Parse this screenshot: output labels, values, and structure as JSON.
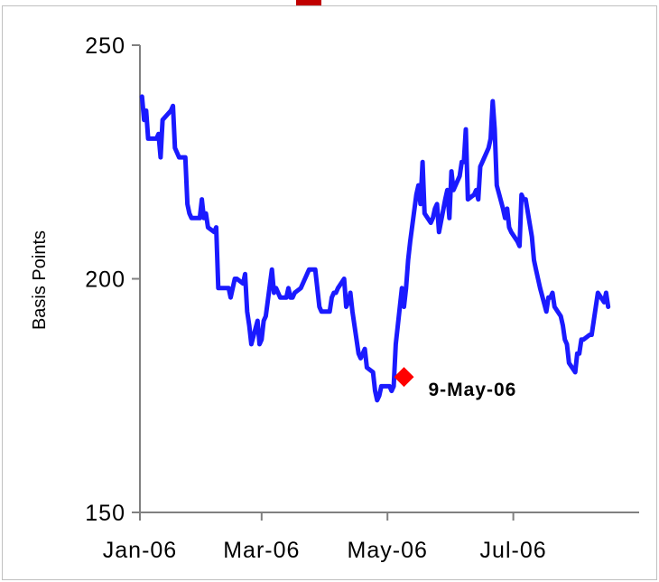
{
  "chart_data": {
    "type": "line",
    "title": "",
    "xlabel": "",
    "ylabel": "Basis Points",
    "ylim": [
      150,
      250
    ],
    "yticks": [
      150,
      200,
      250
    ],
    "xticks": [
      {
        "label": "Jan-06",
        "date": "2006-01-01"
      },
      {
        "label": "Mar-06",
        "date": "2006-03-01"
      },
      {
        "label": "May-06",
        "date": "2006-05-01"
      },
      {
        "label": "Jul-06",
        "date": "2006-07-01"
      }
    ],
    "xlim": [
      "2006-01-01",
      "2006-08-31"
    ],
    "grid": false,
    "series": [
      {
        "color": "#1a1aff",
        "points": [
          [
            "2006-01-02",
            239
          ],
          [
            "2006-01-03",
            234
          ],
          [
            "2006-01-04",
            236
          ],
          [
            "2006-01-05",
            230
          ],
          [
            "2006-01-09",
            230
          ],
          [
            "2006-01-10",
            231
          ],
          [
            "2006-01-11",
            226
          ],
          [
            "2006-01-12",
            234
          ],
          [
            "2006-01-16",
            236
          ],
          [
            "2006-01-17",
            237
          ],
          [
            "2006-01-18",
            228
          ],
          [
            "2006-01-19",
            227
          ],
          [
            "2006-01-20",
            226
          ],
          [
            "2006-01-23",
            226
          ],
          [
            "2006-01-24",
            216
          ],
          [
            "2006-01-25",
            214
          ],
          [
            "2006-01-26",
            213
          ],
          [
            "2006-01-30",
            213
          ],
          [
            "2006-01-31",
            217
          ],
          [
            "2006-02-01",
            213
          ],
          [
            "2006-02-02",
            214
          ],
          [
            "2006-02-03",
            211
          ],
          [
            "2006-02-06",
            210
          ],
          [
            "2006-02-07",
            211
          ],
          [
            "2006-02-08",
            198
          ],
          [
            "2006-02-10",
            198
          ],
          [
            "2006-02-13",
            198
          ],
          [
            "2006-02-14",
            196
          ],
          [
            "2006-02-15",
            198
          ],
          [
            "2006-02-16",
            200
          ],
          [
            "2006-02-17",
            200
          ],
          [
            "2006-02-20",
            199
          ],
          [
            "2006-02-21",
            201
          ],
          [
            "2006-02-22",
            193
          ],
          [
            "2006-02-23",
            190
          ],
          [
            "2006-02-24",
            186
          ],
          [
            "2006-02-27",
            191
          ],
          [
            "2006-02-28",
            186
          ],
          [
            "2006-03-01",
            187
          ],
          [
            "2006-03-02",
            191
          ],
          [
            "2006-03-03",
            192
          ],
          [
            "2006-03-06",
            202
          ],
          [
            "2006-03-07",
            197
          ],
          [
            "2006-03-08",
            198
          ],
          [
            "2006-03-09",
            197
          ],
          [
            "2006-03-10",
            196
          ],
          [
            "2006-03-13",
            196
          ],
          [
            "2006-03-14",
            198
          ],
          [
            "2006-03-15",
            196
          ],
          [
            "2006-03-16",
            196
          ],
          [
            "2006-03-17",
            197
          ],
          [
            "2006-03-20",
            198
          ],
          [
            "2006-03-22",
            200
          ],
          [
            "2006-03-24",
            202
          ],
          [
            "2006-03-27",
            202
          ],
          [
            "2006-03-28",
            198
          ],
          [
            "2006-03-29",
            194
          ],
          [
            "2006-03-30",
            193
          ],
          [
            "2006-03-31",
            193
          ],
          [
            "2006-04-03",
            193
          ],
          [
            "2006-04-04",
            196
          ],
          [
            "2006-04-05",
            197
          ],
          [
            "2006-04-06",
            197
          ],
          [
            "2006-04-07",
            198
          ],
          [
            "2006-04-10",
            200
          ],
          [
            "2006-04-11",
            194
          ],
          [
            "2006-04-12",
            195
          ],
          [
            "2006-04-13",
            197
          ],
          [
            "2006-04-14",
            193
          ],
          [
            "2006-04-17",
            184
          ],
          [
            "2006-04-18",
            183
          ],
          [
            "2006-04-19",
            184
          ],
          [
            "2006-04-20",
            185
          ],
          [
            "2006-04-21",
            181
          ],
          [
            "2006-04-24",
            180
          ],
          [
            "2006-04-25",
            176
          ],
          [
            "2006-04-26",
            174
          ],
          [
            "2006-04-27",
            175
          ],
          [
            "2006-04-28",
            177
          ],
          [
            "2006-05-01",
            177
          ],
          [
            "2006-05-02",
            177
          ],
          [
            "2006-05-03",
            176
          ],
          [
            "2006-05-04",
            177
          ],
          [
            "2006-05-05",
            186
          ],
          [
            "2006-05-08",
            198
          ],
          [
            "2006-05-09",
            194
          ],
          [
            "2006-05-10",
            198
          ],
          [
            "2006-05-11",
            204
          ],
          [
            "2006-05-12",
            208
          ],
          [
            "2006-05-15",
            218
          ],
          [
            "2006-05-16",
            220
          ],
          [
            "2006-05-17",
            216
          ],
          [
            "2006-05-18",
            225
          ],
          [
            "2006-05-19",
            214
          ],
          [
            "2006-05-22",
            212
          ],
          [
            "2006-05-23",
            213
          ],
          [
            "2006-05-24",
            215
          ],
          [
            "2006-05-25",
            216
          ],
          [
            "2006-05-26",
            210
          ],
          [
            "2006-05-29",
            217
          ],
          [
            "2006-05-30",
            219
          ],
          [
            "2006-05-31",
            213
          ],
          [
            "2006-06-01",
            223
          ],
          [
            "2006-06-02",
            219
          ],
          [
            "2006-06-05",
            222
          ],
          [
            "2006-06-06",
            225
          ],
          [
            "2006-06-07",
            225
          ],
          [
            "2006-06-08",
            232
          ],
          [
            "2006-06-09",
            217
          ],
          [
            "2006-06-12",
            218
          ],
          [
            "2006-06-13",
            219
          ],
          [
            "2006-06-14",
            217
          ],
          [
            "2006-06-15",
            224
          ],
          [
            "2006-06-16",
            225
          ],
          [
            "2006-06-19",
            228
          ],
          [
            "2006-06-20",
            230
          ],
          [
            "2006-06-21",
            238
          ],
          [
            "2006-06-22",
            232
          ],
          [
            "2006-06-23",
            220
          ],
          [
            "2006-06-26",
            215
          ],
          [
            "2006-06-27",
            213
          ],
          [
            "2006-06-28",
            215
          ],
          [
            "2006-06-29",
            211
          ],
          [
            "2006-06-30",
            210
          ],
          [
            "2006-07-03",
            208
          ],
          [
            "2006-07-04",
            207
          ],
          [
            "2006-07-05",
            218
          ],
          [
            "2006-07-06",
            217
          ],
          [
            "2006-07-07",
            217
          ],
          [
            "2006-07-10",
            209
          ],
          [
            "2006-07-11",
            204
          ],
          [
            "2006-07-12",
            202
          ],
          [
            "2006-07-13",
            200
          ],
          [
            "2006-07-14",
            198
          ],
          [
            "2006-07-17",
            193
          ],
          [
            "2006-07-18",
            196
          ],
          [
            "2006-07-19",
            196
          ],
          [
            "2006-07-20",
            197
          ],
          [
            "2006-07-21",
            194
          ],
          [
            "2006-07-24",
            192
          ],
          [
            "2006-07-25",
            190
          ],
          [
            "2006-07-26",
            187
          ],
          [
            "2006-07-27",
            186
          ],
          [
            "2006-07-28",
            182
          ],
          [
            "2006-07-31",
            180
          ],
          [
            "2006-08-01",
            184
          ],
          [
            "2006-08-02",
            184
          ],
          [
            "2006-08-03",
            187
          ],
          [
            "2006-08-04",
            187
          ],
          [
            "2006-08-07",
            188
          ],
          [
            "2006-08-08",
            188
          ],
          [
            "2006-08-09",
            191
          ],
          [
            "2006-08-10",
            194
          ],
          [
            "2006-08-11",
            197
          ],
          [
            "2006-08-14",
            195
          ],
          [
            "2006-08-15",
            197
          ],
          [
            "2006-08-16",
            194
          ]
        ]
      }
    ],
    "annotations": [
      {
        "date": "2006-05-09",
        "y": 179,
        "label": "9-May-06",
        "marker": "diamond",
        "color": "#ff0000"
      }
    ]
  }
}
